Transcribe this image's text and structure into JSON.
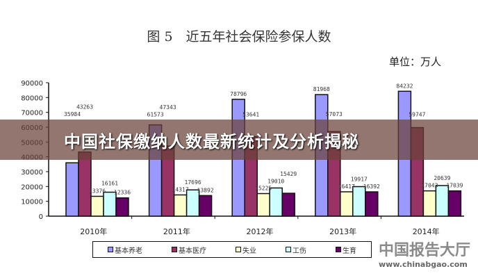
{
  "banner": {
    "text": "中国社保缴纳人数最新统计及分析揭秘"
  },
  "watermark": {
    "name": "中国报告大厅",
    "url": "www.chinabgao.com"
  },
  "chart_data": {
    "type": "bar",
    "title": "图 5　近五年社会保险参保人数",
    "unit": "单位：万人",
    "categories": [
      "2010年",
      "2011年",
      "2012年",
      "2013年",
      "2014年"
    ],
    "ylim": [
      0,
      90000
    ],
    "yticks": [
      0,
      10000,
      20000,
      30000,
      40000,
      50000,
      60000,
      70000,
      80000,
      90000
    ],
    "legend_position": "bottom",
    "grid": false,
    "series": [
      {
        "name": "基本养老",
        "color": "#9999ff",
        "values": [
          35984,
          61573,
          78796,
          81968,
          84232
        ]
      },
      {
        "name": "基本医疗",
        "color": "#993366",
        "values": [
          43263,
          47343,
          53641,
          57073,
          59747
        ]
      },
      {
        "name": "失业",
        "color": "#ffffcc",
        "values": [
          13376,
          14317,
          15225,
          16417,
          17043
        ]
      },
      {
        "name": "工伤",
        "color": "#ccffff",
        "values": [
          16161,
          17696,
          19010,
          19917,
          20639
        ]
      },
      {
        "name": "生育",
        "color": "#660066",
        "values": [
          12336,
          13892,
          15429,
          16392,
          17039
        ]
      }
    ]
  }
}
